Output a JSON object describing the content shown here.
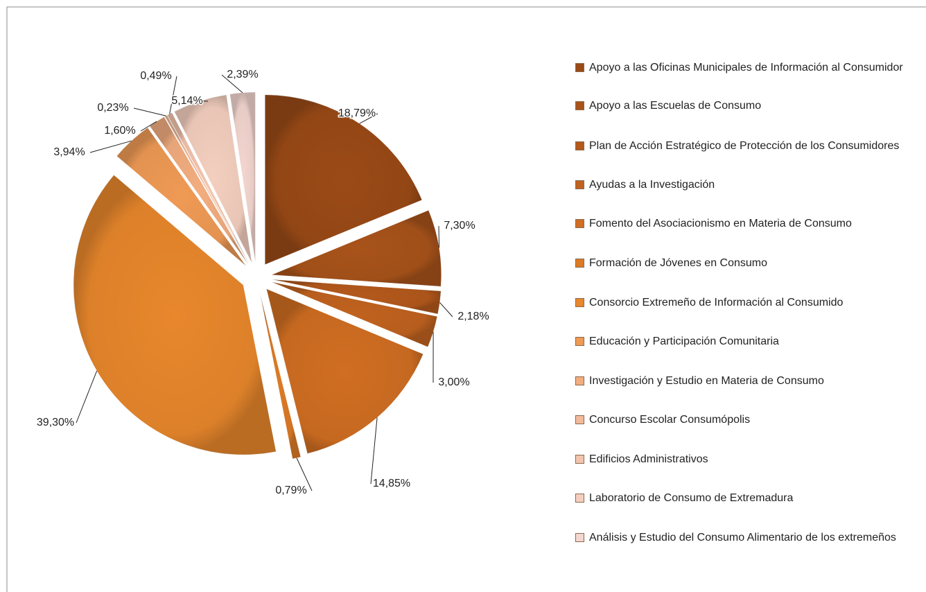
{
  "chart_data": {
    "type": "pie",
    "categories": [
      "Apoyo a las Oficinas Municipales de Información al Consumidor",
      "Apoyo a las Escuelas de Consumo",
      "Plan de Acción Estratégico de Protección de los Consumidores",
      "Ayudas a la Investigación",
      "Fomento del Asociacionismo en Materia de Consumo",
      "Formación de Jóvenes en Consumo",
      "Consorcio Extremeño de Información al Consumido",
      "Educación y Participación Comunitaria",
      "Investigación y Estudio  en Materia de Consumo",
      "Concurso Escolar Consumópolis",
      "Edificios Administrativos",
      "Laboratorio de Consumo de Extremadura",
      "Análisis y Estudio del Consumo Alimentario de los extremeños"
    ],
    "values": [
      18.79,
      7.3,
      2.18,
      3.0,
      14.85,
      0.79,
      39.3,
      3.94,
      1.6,
      0.23,
      0.49,
      5.14,
      2.39
    ],
    "value_labels": [
      "18,79%",
      "7,30%",
      "2,18%",
      "3,00%",
      "14,85%",
      "0,79%",
      "39,30%",
      "3,94%",
      "1,60%",
      "0,23%",
      "0,49%",
      "5,14%",
      "2,39%"
    ],
    "colors": [
      "#9a4a16",
      "#a8531a",
      "#b4591c",
      "#c0621f",
      "#d06e22",
      "#dc7a26",
      "#e8872c",
      "#ef9a55",
      "#f2ad7f",
      "#f2b99a",
      "#f3c4ad",
      "#f4cfbf",
      "#f3d6cf"
    ],
    "legend": "right"
  }
}
